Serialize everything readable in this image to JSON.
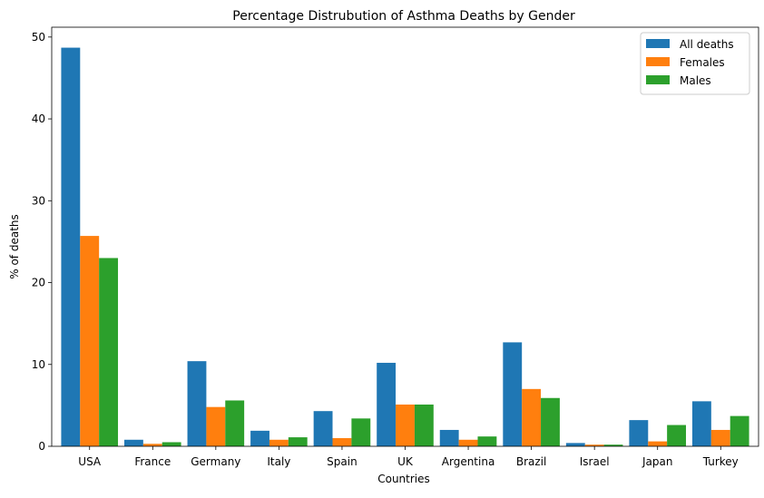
{
  "chart_data": {
    "type": "bar",
    "title": "Percentage Distrubution of Asthma Deaths by Gender",
    "xlabel": "Countries",
    "ylabel": "%  of deaths",
    "categories": [
      "USA",
      "France",
      "Germany",
      "Italy",
      "Spain",
      "UK",
      "Argentina",
      "Brazil",
      "Israel",
      "Japan",
      "Turkey"
    ],
    "series": [
      {
        "name": "All deaths",
        "color": "#1f77b4",
        "values": [
          48.7,
          0.8,
          10.4,
          1.9,
          4.3,
          10.2,
          2.0,
          12.7,
          0.4,
          3.2,
          5.5
        ]
      },
      {
        "name": "Females",
        "color": "#ff7f0e",
        "values": [
          25.7,
          0.3,
          4.8,
          0.8,
          1.0,
          5.1,
          0.8,
          7.0,
          0.2,
          0.6,
          2.0
        ]
      },
      {
        "name": "Males",
        "color": "#2ca02c",
        "values": [
          23.0,
          0.5,
          5.6,
          1.1,
          3.4,
          5.1,
          1.2,
          5.9,
          0.2,
          2.6,
          3.7
        ]
      }
    ],
    "yticks": [
      0,
      10,
      20,
      30,
      40,
      50
    ],
    "ylim": [
      0,
      51.2
    ],
    "grid": false,
    "legend_position": "top-right"
  }
}
